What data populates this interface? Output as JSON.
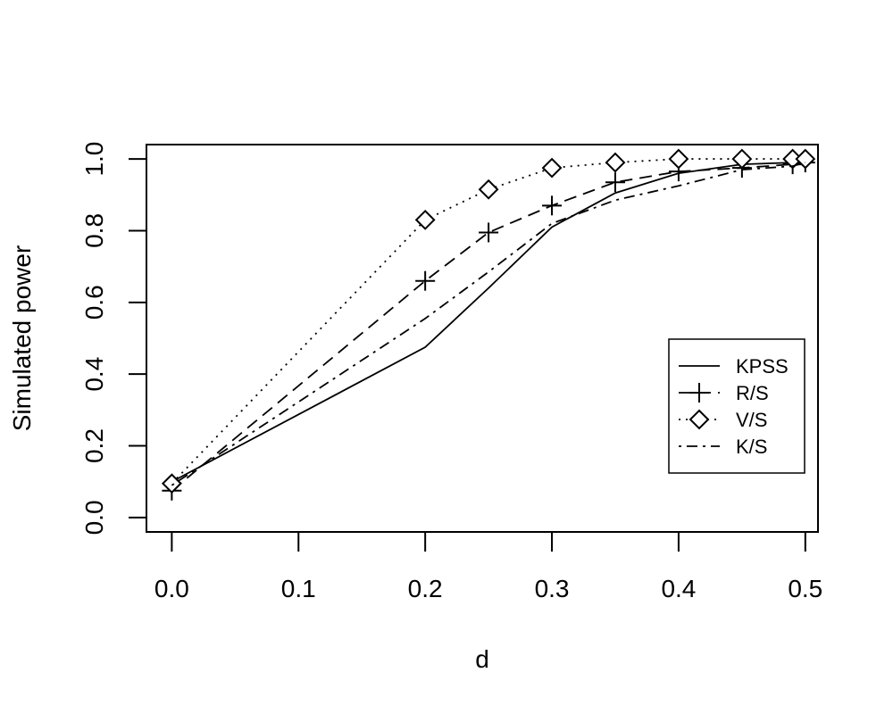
{
  "chart_data": {
    "type": "line",
    "title": "",
    "xlabel": "d",
    "ylabel": "Simulated power",
    "xlim": [
      -0.02,
      0.51
    ],
    "ylim": [
      -0.04,
      1.04
    ],
    "xticks": [
      0.0,
      0.1,
      0.2,
      0.3,
      0.4,
      0.5
    ],
    "xtick_labels": [
      "0.0",
      "0.1",
      "0.2",
      "0.3",
      "0.4",
      "0.5"
    ],
    "yticks": [
      0.0,
      0.2,
      0.4,
      0.6,
      0.8,
      1.0
    ],
    "ytick_labels": [
      "0.0",
      "0.2",
      "0.4",
      "0.6",
      "0.8",
      "1.0"
    ],
    "grid": false,
    "legend_position": "right",
    "x": [
      0.0,
      0.2,
      0.25,
      0.3,
      0.35,
      0.4,
      0.45,
      0.49,
      0.5
    ],
    "series": [
      {
        "name": "KPSS",
        "line": "solid",
        "marker": "none",
        "values": [
          0.1,
          0.475,
          0.64,
          0.81,
          0.905,
          0.96,
          0.985,
          0.99,
          0.99
        ]
      },
      {
        "name": "R/S",
        "line": "dashed",
        "marker": "plus",
        "values": [
          0.075,
          0.66,
          0.795,
          0.87,
          0.935,
          0.965,
          0.975,
          0.985,
          0.99
        ]
      },
      {
        "name": "V/S",
        "line": "dotted",
        "marker": "diamond",
        "values": [
          0.095,
          0.83,
          0.915,
          0.975,
          0.99,
          1.0,
          1.0,
          1.0,
          1.0
        ]
      },
      {
        "name": "K/S",
        "line": "dotdash",
        "marker": "none",
        "values": [
          0.09,
          0.555,
          0.685,
          0.82,
          0.885,
          0.925,
          0.97,
          0.98,
          0.99
        ]
      }
    ]
  }
}
